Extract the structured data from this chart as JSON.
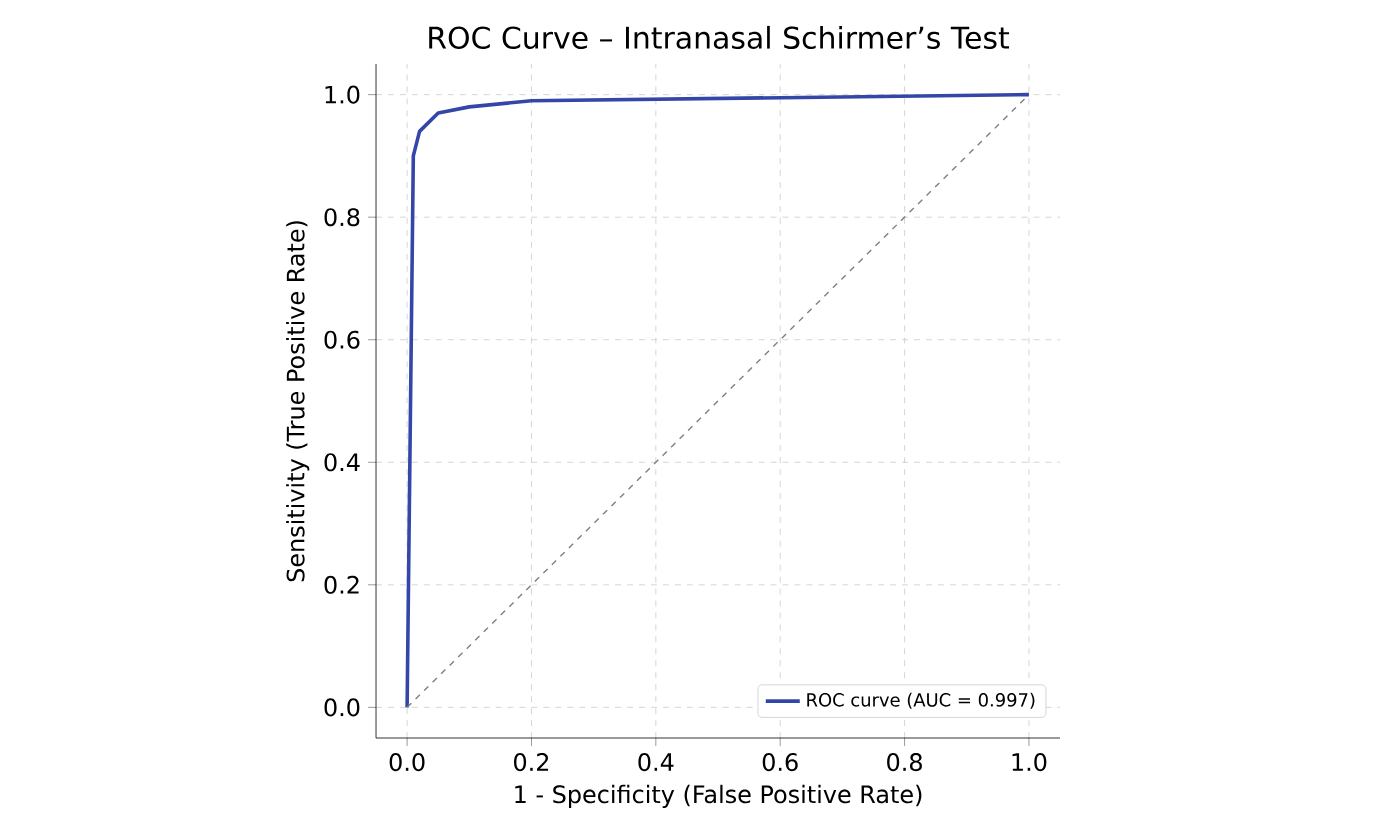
{
  "chart_data": {
    "type": "line",
    "title": "ROC Curve – Intranasal Schirmer’s Test",
    "xlabel": "1 - Specificity (False Positive Rate)",
    "ylabel": "Sensitivity (True Positive Rate)",
    "xlim": [
      -0.05,
      1.05
    ],
    "ylim": [
      -0.05,
      1.05
    ],
    "xticks": [
      {
        "value": 0,
        "label": "0.0"
      },
      {
        "value": 0.2,
        "label": "0.2"
      },
      {
        "value": 0.4,
        "label": "0.4"
      },
      {
        "value": 0.6,
        "label": "0.6"
      },
      {
        "value": 0.8,
        "label": "0.8"
      },
      {
        "value": 1,
        "label": "1.0"
      }
    ],
    "yticks": [
      {
        "value": 0,
        "label": "0.0"
      },
      {
        "value": 0.2,
        "label": "0.2"
      },
      {
        "value": 0.4,
        "label": "0.4"
      },
      {
        "value": 0.6,
        "label": "0.6"
      },
      {
        "value": 0.8,
        "label": "0.8"
      },
      {
        "value": 1,
        "label": "1.0"
      }
    ],
    "grid": true,
    "legend": "bottom right",
    "series": [
      {
        "name": "ROC curve (AUC = 0.997)",
        "color": "#3446a8",
        "x": [
          0,
          0.01,
          0.02,
          0.05,
          0.1,
          0.2,
          1
        ],
        "values": [
          0,
          0.9,
          0.94,
          0.97,
          0.98,
          0.99,
          1
        ]
      },
      {
        "color": "#7f7f7f",
        "line_style": "dashed",
        "x": [
          0,
          1
        ],
        "values": [
          0,
          1
        ]
      }
    ]
  }
}
